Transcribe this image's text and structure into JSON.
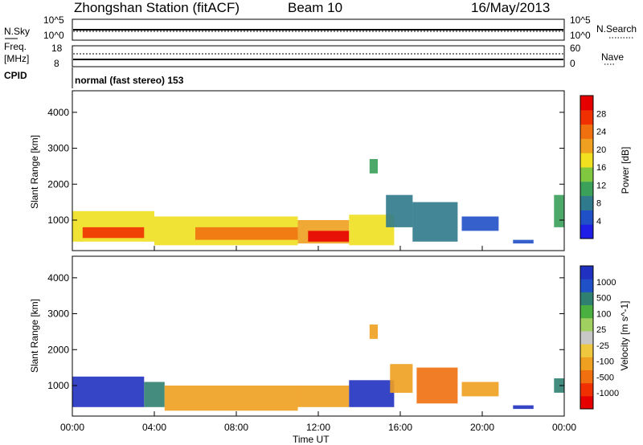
{
  "header": {
    "station": "Zhongshan Station (fitACF)",
    "beam": "Beam 10",
    "date": "16/May/2013"
  },
  "status_panel": {
    "left_labels": [
      "N.Sky",
      "Freq.",
      "[MHz]",
      "CPID"
    ],
    "right_labels": [
      "N.Search",
      "Nave"
    ],
    "nsky_ticks": [
      "10^5",
      "10^0"
    ],
    "nsearch_ticks": [
      "10^5",
      "10^0"
    ],
    "freq_ticks": [
      "18",
      "8"
    ],
    "nave_ticks": [
      "60",
      "0"
    ],
    "cpid_text": "normal (fast stereo) 153"
  },
  "colors": {
    "power": [
      "#1e1ee6",
      "#2050c8",
      "#2f7a8c",
      "#3aa05a",
      "#80c840",
      "#f0e020",
      "#f0a020",
      "#f07010",
      "#f03000",
      "#e60000"
    ],
    "velocity": [
      "#e60000",
      "#f03000",
      "#f07010",
      "#f0a020",
      "#f0c840",
      "#c8c8c8",
      "#a0d060",
      "#4ab040",
      "#2f8070",
      "#2050c8",
      "#2030c0"
    ]
  },
  "chart_data": [
    {
      "type": "heatmap",
      "parameter": "Power",
      "ylabel": "Slant Range [km]",
      "ylim": [
        150,
        4600
      ],
      "yticks": [
        "1000",
        "2000",
        "3000",
        "4000"
      ],
      "xlim": [
        "00:00",
        "24:00"
      ],
      "colorbar_label": "Power [dB]",
      "colorbar_ticks": [
        "28",
        "24",
        "20",
        "16",
        "12",
        "8",
        "4"
      ],
      "colorbar_range": [
        0,
        32
      ],
      "regions": [
        {
          "t0": 0.0,
          "t1": 4.0,
          "r0": 400,
          "r1": 1250,
          "value": 18
        },
        {
          "t0": 0.5,
          "t1": 3.5,
          "r0": 500,
          "r1": 800,
          "value": 26
        },
        {
          "t0": 4.0,
          "t1": 11.0,
          "r0": 300,
          "r1": 1100,
          "value": 18
        },
        {
          "t0": 6.0,
          "t1": 11.0,
          "r0": 450,
          "r1": 800,
          "value": 24
        },
        {
          "t0": 11.0,
          "t1": 13.5,
          "r0": 350,
          "r1": 1000,
          "value": 22
        },
        {
          "t0": 11.5,
          "t1": 13.5,
          "r0": 400,
          "r1": 700,
          "value": 29
        },
        {
          "t0": 13.5,
          "t1": 15.7,
          "r0": 300,
          "r1": 1150,
          "value": 18
        },
        {
          "t0": 15.3,
          "t1": 16.6,
          "r0": 800,
          "r1": 1700,
          "value": 8
        },
        {
          "t0": 16.6,
          "t1": 18.8,
          "r0": 400,
          "r1": 1500,
          "value": 8
        },
        {
          "t0": 19.0,
          "t1": 20.8,
          "r0": 700,
          "r1": 1100,
          "value": 6
        },
        {
          "t0": 21.5,
          "t1": 22.5,
          "r0": 350,
          "r1": 450,
          "value": 4
        },
        {
          "t0": 23.5,
          "t1": 24.0,
          "r0": 800,
          "r1": 1700,
          "value": 12
        },
        {
          "t0": 14.5,
          "t1": 14.9,
          "r0": 2300,
          "r1": 2700,
          "value": 10
        }
      ]
    },
    {
      "type": "heatmap",
      "parameter": "Velocity",
      "ylabel": "Slant Range [km]",
      "xlabel": "Time UT",
      "ylim": [
        150,
        4600
      ],
      "yticks": [
        "1000",
        "2000",
        "3000",
        "4000"
      ],
      "xticks": [
        "00:00",
        "04:00",
        "08:00",
        "12:00",
        "16:00",
        "20:00",
        "00:00"
      ],
      "xlim": [
        "00:00",
        "24:00"
      ],
      "colorbar_label": "Velocity [m s^-1]",
      "colorbar_ticks": [
        "1000",
        "500",
        "100",
        "25",
        "-25",
        "-100",
        "-500",
        "-1000"
      ],
      "regions": [
        {
          "t0": 0.0,
          "t1": 3.5,
          "r0": 400,
          "r1": 1250,
          "value": 500
        },
        {
          "t0": 3.5,
          "t1": 4.5,
          "r0": 400,
          "r1": 1100,
          "value": 100
        },
        {
          "t0": 4.5,
          "t1": 11.0,
          "r0": 300,
          "r1": 1000,
          "value": -100
        },
        {
          "t0": 11.0,
          "t1": 13.5,
          "r0": 400,
          "r1": 1000,
          "value": -100
        },
        {
          "t0": 13.5,
          "t1": 15.7,
          "r0": 400,
          "r1": 1150,
          "value": 500
        },
        {
          "t0": 15.5,
          "t1": 16.6,
          "r0": 800,
          "r1": 1600,
          "value": -100
        },
        {
          "t0": 16.8,
          "t1": 18.8,
          "r0": 500,
          "r1": 1500,
          "value": -150
        },
        {
          "t0": 19.0,
          "t1": 20.8,
          "r0": 700,
          "r1": 1100,
          "value": -100
        },
        {
          "t0": 21.5,
          "t1": 22.5,
          "r0": 350,
          "r1": 450,
          "value": 500
        },
        {
          "t0": 23.5,
          "t1": 24.0,
          "r0": 800,
          "r1": 1200,
          "value": 100
        },
        {
          "t0": 14.5,
          "t1": 14.9,
          "r0": 2300,
          "r1": 2700,
          "value": -100
        }
      ]
    }
  ]
}
